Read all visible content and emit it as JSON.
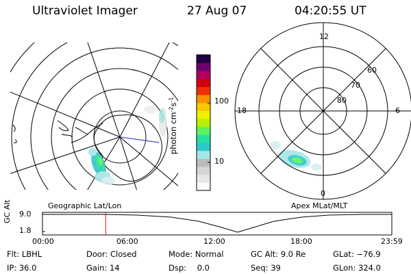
{
  "header": {
    "title": "Ultraviolet Imager",
    "date": "27 Aug 07",
    "time": "04:20:55 UT"
  },
  "colorbar": {
    "label": "photon cm",
    "label_exp1": "-2",
    "label_s": "s",
    "label_exp2": "-1",
    "ticks": [
      "100",
      "10"
    ],
    "colors": [
      "#fbfbfb",
      "#e8e8e8",
      "#d6d6d6",
      "#bcbcbc",
      "#a6e6e6",
      "#2ec8c8",
      "#28e0a0",
      "#60f060",
      "#b8f000",
      "#f0f000",
      "#f8c800",
      "#f89000",
      "#f03000",
      "#d00010",
      "#b00060",
      "#700070",
      "#200040"
    ]
  },
  "geo_map": {
    "label": "Geographic Lat/Lon"
  },
  "apex_map": {
    "label": "Apex MLat/MLT",
    "mlt_labels": [
      "12",
      "18",
      "6",
      "0"
    ],
    "lat_labels": [
      "60",
      "70",
      "80"
    ]
  },
  "timeline": {
    "ylabel": "GC Alt",
    "yticks": [
      "9.0",
      "1.8"
    ],
    "xticks": [
      "00:00",
      "06:00",
      "12:00",
      "18:00",
      "23:59"
    ],
    "marker_time": "04:20:55",
    "marker_fraction": 0.181,
    "marker_color": "#ff0000"
  },
  "status": {
    "row1": [
      {
        "key": "Flt:",
        "value": "LBHL"
      },
      {
        "key": "Door:",
        "value": "Closed"
      },
      {
        "key": "Mode:",
        "value": "Normal"
      },
      {
        "key": "GC Alt:",
        "value": "9.0 Re"
      },
      {
        "key": "GLat:",
        "value": "−76.9"
      }
    ],
    "row2": [
      {
        "key": "IP:",
        "value": "36.0"
      },
      {
        "key": "Gain:",
        "value": "14"
      },
      {
        "key": "Dsp:",
        "value": "0.0"
      },
      {
        "key": "Seq:",
        "value": "39"
      },
      {
        "key": "GLon:",
        "value": "324.0"
      }
    ]
  }
}
